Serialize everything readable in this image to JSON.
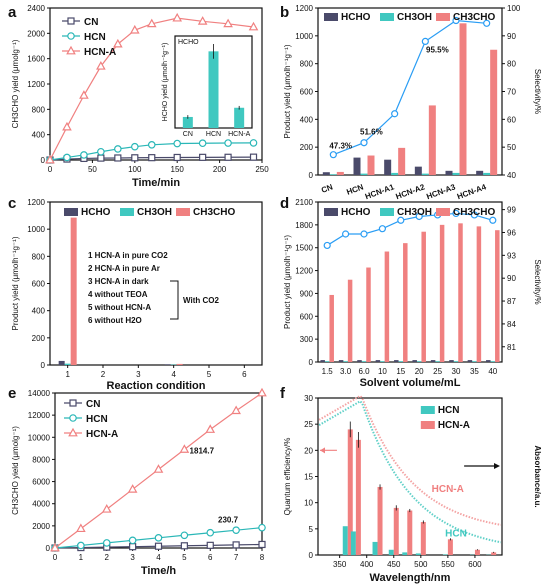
{
  "chart_data": [
    {
      "panel": "a",
      "type": "line",
      "xlabel": "Time/min",
      "ylabel": "CH3CHO yield (μmolg⁻¹)",
      "xlim": [
        0,
        250
      ],
      "ylim": [
        0,
        2400
      ],
      "xticks": [
        0,
        50,
        100,
        150,
        200,
        250
      ],
      "yticks": [
        0,
        400,
        800,
        1200,
        1600,
        2000,
        2400
      ],
      "x": [
        0,
        20,
        40,
        60,
        80,
        100,
        120,
        150,
        180,
        210,
        240
      ],
      "series": [
        {
          "name": "CN",
          "color": "#4a4a6a",
          "marker": "square",
          "values": [
            0,
            15,
            25,
            30,
            32,
            35,
            37,
            40,
            42,
            43,
            45
          ]
        },
        {
          "name": "HCN",
          "color": "#2ab7b7",
          "marker": "circle",
          "values": [
            0,
            40,
            80,
            130,
            175,
            210,
            240,
            260,
            265,
            268,
            270
          ]
        },
        {
          "name": "HCN-A",
          "color": "#f08080",
          "marker": "triangle",
          "values": [
            0,
            520,
            1020,
            1480,
            1830,
            2050,
            2150,
            2240,
            2190,
            2150,
            2100
          ]
        }
      ],
      "inset": {
        "title": "HCHO",
        "ylabel": "HCHO yield (μmolh⁻¹g⁻¹)",
        "categories": [
          "CN",
          "HCN",
          "HCN-A"
        ],
        "values": [
          18,
          125,
          33
        ],
        "errors": [
          3,
          12,
          3
        ],
        "ylim": [
          0,
          150
        ]
      }
    },
    {
      "panel": "b",
      "type": "bar",
      "ylabel": "Product yield (μmolh⁻¹g⁻¹)",
      "ylabel2": "Selectivity/%",
      "categories": [
        "CN",
        "HCN",
        "HCN-A1",
        "HCN-A2",
        "HCN-A3",
        "HCN-A4"
      ],
      "ylim": [
        0,
        1200
      ],
      "yticks": [
        0,
        200,
        400,
        600,
        800,
        1000,
        1200
      ],
      "y2lim": [
        40,
        100
      ],
      "y2ticks": [
        40,
        50,
        60,
        70,
        80,
        90,
        100
      ],
      "series": [
        {
          "name": "HCHO",
          "color": "#4a4a6a",
          "values": [
            20,
            125,
            110,
            60,
            30,
            30
          ]
        },
        {
          "name": "CH3OH",
          "color": "#40c8c0",
          "values": [
            5,
            10,
            15,
            10,
            15,
            15
          ]
        },
        {
          "name": "CH3CHO",
          "color": "#f08080",
          "values": [
            22,
            140,
            195,
            500,
            1090,
            900
          ]
        }
      ],
      "selectivity": [
        47.3,
        51.6,
        62,
        88,
        95.5,
        94.5
      ],
      "annotations": [
        "47.3%",
        "51.6%",
        "95.5%"
      ]
    },
    {
      "panel": "c",
      "type": "bar",
      "xlabel": "Reaction condition",
      "ylabel": "Product yield (μmolh⁻¹g⁻¹)",
      "categories": [
        "1",
        "2",
        "3",
        "4",
        "5",
        "6"
      ],
      "ylim": [
        0,
        1200
      ],
      "yticks": [
        0,
        200,
        400,
        600,
        800,
        1000,
        1200
      ],
      "series": [
        {
          "name": "HCHO",
          "color": "#4a4a6a",
          "values": [
            30,
            0,
            0,
            5,
            0,
            0
          ]
        },
        {
          "name": "CH3OH",
          "color": "#40c8c0",
          "values": [
            10,
            0,
            0,
            3,
            0,
            0
          ]
        },
        {
          "name": "CH3CHO",
          "color": "#f08080",
          "values": [
            1085,
            0,
            0,
            8,
            0,
            0
          ]
        }
      ],
      "conditions": [
        "1 HCN-A in pure CO2",
        "2 HCN-A in pure Ar",
        "3 HCN-A in dark",
        "4 without TEOA",
        "5 without HCN-A",
        "6 without H2O"
      ],
      "bracket_label": "With CO2"
    },
    {
      "panel": "d",
      "type": "bar",
      "xlabel": "Solvent volume/mL",
      "ylabel": "Product yield (μmolh⁻¹g⁻¹)",
      "ylabel2": "Selectivity/%",
      "categories": [
        "1.5",
        "3.0",
        "6.0",
        "10",
        "15",
        "20",
        "25",
        "30",
        "35",
        "40"
      ],
      "ylim": [
        0,
        2100
      ],
      "yticks": [
        0,
        300,
        600,
        900,
        1200,
        1500,
        1800,
        2100
      ],
      "y2lim": [
        79,
        100
      ],
      "y2ticks": [
        81,
        84,
        87,
        90,
        93,
        96,
        99
      ],
      "series": [
        {
          "name": "HCHO",
          "color": "#4a4a6a",
          "values": [
            25,
            25,
            25,
            25,
            25,
            25,
            25,
            25,
            25,
            25
          ]
        },
        {
          "name": "CH3OH",
          "color": "#40c8c0",
          "values": [
            10,
            10,
            10,
            10,
            10,
            10,
            10,
            10,
            10,
            10
          ]
        },
        {
          "name": "CH3CHO",
          "color": "#f08080",
          "values": [
            880,
            1080,
            1240,
            1450,
            1560,
            1710,
            1800,
            1820,
            1780,
            1730
          ]
        }
      ],
      "selectivity": [
        94.3,
        95.8,
        95.8,
        96.5,
        97.6,
        98.1,
        98.3,
        98.5,
        98.3,
        97.6
      ]
    },
    {
      "panel": "e",
      "type": "line",
      "xlabel": "Time/h",
      "ylabel": "CH3CHO yield (μmolg⁻¹)",
      "xlim": [
        0,
        8
      ],
      "ylim": [
        0,
        14000
      ],
      "xticks": [
        0,
        1,
        2,
        3,
        4,
        5,
        6,
        7,
        8
      ],
      "yticks": [
        0,
        2000,
        4000,
        6000,
        8000,
        10000,
        12000,
        14000
      ],
      "x": [
        0,
        1,
        2,
        3,
        4,
        5,
        6,
        7,
        8
      ],
      "series": [
        {
          "name": "CN",
          "color": "#4a4a6a",
          "marker": "square",
          "values": [
            0,
            40,
            80,
            120,
            160,
            200,
            240,
            280,
            320
          ]
        },
        {
          "name": "HCN",
          "color": "#2ab7b7",
          "marker": "circle",
          "values": [
            0,
            230,
            460,
            690,
            920,
            1150,
            1380,
            1610,
            1840
          ]
        },
        {
          "name": "HCN-A",
          "color": "#f08080",
          "marker": "triangle",
          "values": [
            0,
            1750,
            3500,
            5300,
            7100,
            8900,
            10700,
            12400,
            14000
          ]
        }
      ],
      "annotations": [
        "1814.7",
        "230.7"
      ]
    },
    {
      "panel": "f",
      "type": "bar",
      "xlabel": "Wavelength/nm",
      "ylabel": "Quantum efficiency/%",
      "ylabel2": "Absorbance/a.u.",
      "xlim": [
        310,
        650
      ],
      "xticks": [
        350,
        400,
        450,
        500,
        550,
        600
      ],
      "ylim": [
        0,
        30
      ],
      "yticks": [
        0,
        5,
        10,
        15,
        20,
        25,
        30
      ],
      "x": [
        365,
        380,
        420,
        450,
        475,
        500,
        550,
        600,
        630
      ],
      "series": [
        {
          "name": "HCN",
          "color": "#40c8c0",
          "values": [
            5.5,
            4.5,
            2.5,
            1.0,
            0.5,
            0.3,
            0.1,
            0.05,
            0.05
          ]
        },
        {
          "name": "HCN-A",
          "color": "#f08080",
          "values": [
            24,
            22,
            13,
            9,
            8.5,
            6.3,
            3,
            1,
            0.5
          ]
        }
      ],
      "errors": [
        1.5,
        1.5,
        0.5,
        0.5,
        0.3,
        0.3,
        0.2,
        0.1,
        0.1
      ],
      "curve_labels": [
        "HCN-A",
        "HCN"
      ]
    }
  ],
  "panels": {
    "a": {
      "letter": "a",
      "inset_cat": [
        "CN",
        "HCN",
        "HCN-A"
      ]
    },
    "b": {
      "letter": "b"
    },
    "c": {
      "letter": "c"
    },
    "d": {
      "letter": "d"
    },
    "e": {
      "letter": "e"
    },
    "f": {
      "letter": "f"
    }
  }
}
